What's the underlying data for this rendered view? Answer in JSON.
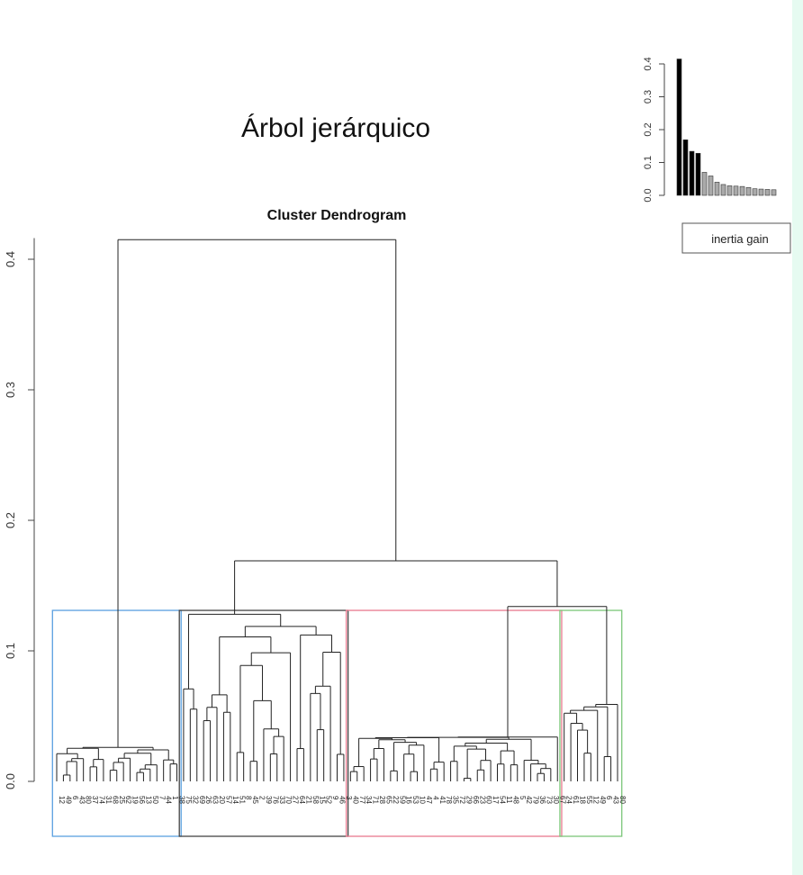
{
  "main_title": "Árbol jerárquico",
  "chart_data": [
    {
      "type": "dendrogram",
      "title": "Cluster Dendrogram",
      "xlabel": "",
      "ylabel": "",
      "ylim": [
        0,
        0.43
      ],
      "y_ticks": [
        0.0,
        0.1,
        0.2,
        0.3,
        0.4
      ],
      "y_tick_labels": [
        "0.0",
        "0.1",
        "0.2",
        "0.3",
        "0.4"
      ],
      "top_merge_height": 0.415,
      "second_merge_height": 0.169,
      "third_merge_height": 0.134,
      "fourth_merge_height": 0.128,
      "cut_height": 0.131,
      "clusters": [
        {
          "id": 1,
          "color": "#5aa0e0",
          "leaves": 19,
          "merge_height": 0.026
        },
        {
          "id": 2,
          "color": "#444444",
          "leaves": 25,
          "merge_height": 0.128
        },
        {
          "id": 3,
          "color": "#e87a8f",
          "leaves": 32,
          "merge_height": 0.034
        },
        {
          "id": 4,
          "color": "#7cc77a",
          "leaves": 9,
          "merge_height": 0.059
        }
      ],
      "grid": false,
      "legend": "none"
    },
    {
      "type": "bar",
      "title": "",
      "ylim": [
        0,
        0.42
      ],
      "y_ticks": [
        0.0,
        0.1,
        0.2,
        0.3,
        0.4
      ],
      "y_tick_labels": [
        "0.0",
        "0.1",
        "0.2",
        "0.3",
        "0.4"
      ],
      "values": [
        0.415,
        0.169,
        0.134,
        0.128,
        0.07,
        0.059,
        0.04,
        0.033,
        0.029,
        0.028,
        0.027,
        0.024,
        0.02,
        0.019,
        0.018,
        0.017
      ],
      "highlighted_count": 4,
      "highlight_color": "#000000",
      "other_color": "#aaaaaa",
      "legend": "inertia gain"
    }
  ]
}
